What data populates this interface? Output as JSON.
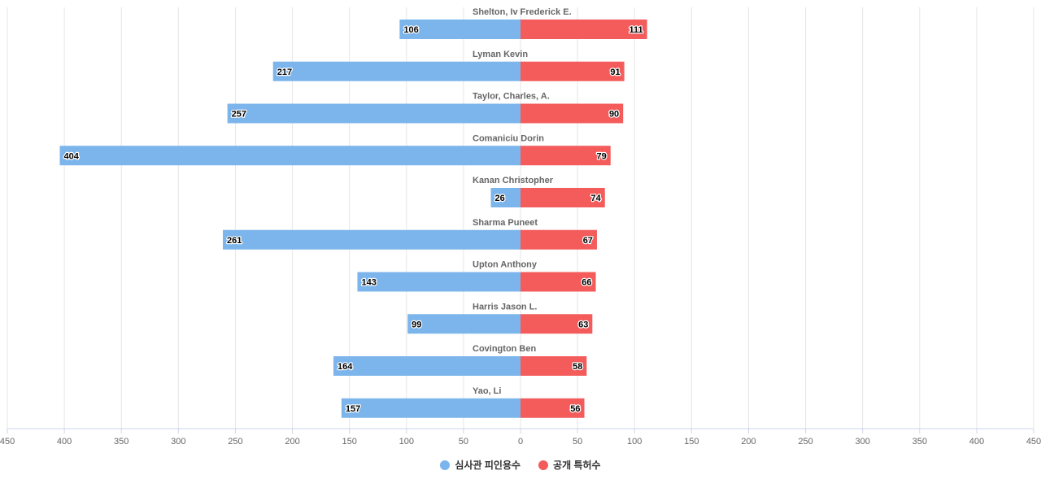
{
  "chart_data": {
    "type": "bar",
    "orientation": "horizontal-diverging",
    "categories": [
      "Shelton, Iv Frederick E.",
      "Lyman Kevin",
      "Taylor, Charles, A.",
      "Comaniciu Dorin",
      "Kanan Christopher",
      "Sharma Puneet",
      "Upton Anthony",
      "Harris Jason L.",
      "Covington Ben",
      "Yao, Li"
    ],
    "series": [
      {
        "name": "심사관 피인용수",
        "color": "#7cb5ec",
        "values": [
          106,
          217,
          257,
          404,
          26,
          261,
          143,
          99,
          164,
          157
        ]
      },
      {
        "name": "공개 특허수",
        "color": "#f45b5b",
        "values": [
          111,
          91,
          90,
          79,
          74,
          67,
          66,
          63,
          58,
          56
        ]
      }
    ],
    "xlim": [
      -450,
      450
    ],
    "xticks": [
      "450",
      "400",
      "350",
      "300",
      "250",
      "200",
      "150",
      "100",
      "50",
      "0",
      "50",
      "100",
      "150",
      "200",
      "250",
      "300",
      "350",
      "400",
      "450"
    ],
    "grid": true,
    "legend_position": "bottom-center",
    "title": "",
    "xlabel": "",
    "ylabel": ""
  },
  "legend": {
    "items": [
      {
        "label": "심사관 피인용수",
        "color": "#7cb5ec"
      },
      {
        "label": "공개 특허수",
        "color": "#f45b5b"
      }
    ]
  }
}
